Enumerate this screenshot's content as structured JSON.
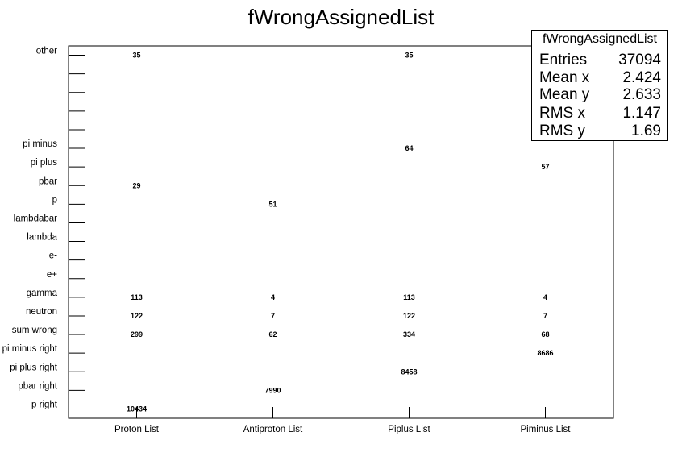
{
  "title": "fWrongAssignedList",
  "stats_box": {
    "title": "fWrongAssignedList",
    "rows": [
      {
        "label": "Entries",
        "value": "37094"
      },
      {
        "label": "Mean x",
        "value": "2.424"
      },
      {
        "label": "Mean y",
        "value": "2.633"
      },
      {
        "label": "RMS x",
        "value": "1.147"
      },
      {
        "label": "RMS y",
        "value": "1.69"
      }
    ]
  },
  "chart_data": {
    "type": "heatmap",
    "title": "fWrongAssignedList",
    "x_categories": [
      "Proton List",
      "Antiproton List",
      "Piplus List",
      "Piminus List"
    ],
    "y_categories": [
      "p right",
      "pbar right",
      "pi plus right",
      "pi minus right",
      "sum wrong",
      "neutron",
      "gamma",
      "e+",
      "e-",
      "lambda",
      "lambdabar",
      "p",
      "pbar",
      "pi plus",
      "pi minus",
      "",
      "",
      "",
      "",
      "other"
    ],
    "cells": [
      {
        "x": "Proton List",
        "y": "p right",
        "value": 10434
      },
      {
        "x": "Antiproton List",
        "y": "pbar right",
        "value": 7990
      },
      {
        "x": "Piplus List",
        "y": "pi plus right",
        "value": 8458
      },
      {
        "x": "Piminus List",
        "y": "pi minus right",
        "value": 8686
      },
      {
        "x": "Proton List",
        "y": "sum wrong",
        "value": 299
      },
      {
        "x": "Antiproton List",
        "y": "sum wrong",
        "value": 62
      },
      {
        "x": "Piplus List",
        "y": "sum wrong",
        "value": 334
      },
      {
        "x": "Piminus List",
        "y": "sum wrong",
        "value": 68
      },
      {
        "x": "Proton List",
        "y": "neutron",
        "value": 122
      },
      {
        "x": "Antiproton List",
        "y": "neutron",
        "value": 7
      },
      {
        "x": "Piplus List",
        "y": "neutron",
        "value": 122
      },
      {
        "x": "Piminus List",
        "y": "neutron",
        "value": 7
      },
      {
        "x": "Proton List",
        "y": "gamma",
        "value": 113
      },
      {
        "x": "Antiproton List",
        "y": "gamma",
        "value": 4
      },
      {
        "x": "Piplus List",
        "y": "gamma",
        "value": 113
      },
      {
        "x": "Piminus List",
        "y": "gamma",
        "value": 4
      },
      {
        "x": "Antiproton List",
        "y": "p",
        "value": 51
      },
      {
        "x": "Proton List",
        "y": "pbar",
        "value": 29
      },
      {
        "x": "Piminus List",
        "y": "pi plus",
        "value": 57
      },
      {
        "x": "Piplus List",
        "y": "pi minus",
        "value": 64
      },
      {
        "x": "Proton List",
        "y": "other",
        "value": 35
      },
      {
        "x": "Piplus List",
        "y": "other",
        "value": 35
      }
    ],
    "grid": false,
    "legend": "none"
  }
}
